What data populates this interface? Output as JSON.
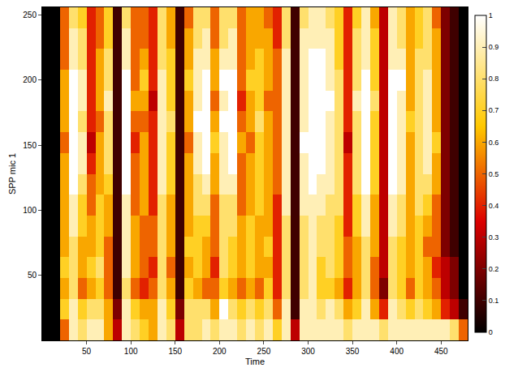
{
  "chart_data": {
    "type": "heatmap",
    "x_label": "Time",
    "y_label": "SPP mic 1",
    "color": "hot",
    "xlim": [
      0,
      480
    ],
    "ylim": [
      0,
      256
    ],
    "xticks": [
      50,
      100,
      150,
      200,
      250,
      300,
      350,
      400,
      450
    ],
    "yticks": [
      50,
      100,
      150,
      200,
      250
    ],
    "colorbar_range": [
      0,
      1
    ],
    "colorbar_ticks": [
      0,
      0.1,
      0.2,
      0.3,
      0.4,
      0.5,
      0.6,
      0.7,
      0.8,
      0.9,
      1
    ],
    "x": [
      5,
      15,
      25,
      35,
      45,
      55,
      65,
      75,
      85,
      95,
      105,
      115,
      125,
      135,
      145,
      155,
      165,
      175,
      185,
      195,
      205,
      215,
      225,
      235,
      245,
      255,
      265,
      275,
      285,
      295,
      305,
      315,
      325,
      335,
      345,
      355,
      365,
      375,
      385,
      395,
      405,
      415,
      425,
      435,
      445,
      455,
      465,
      475
    ],
    "y": [
      8,
      24,
      40,
      56,
      72,
      88,
      104,
      120,
      136,
      152,
      168,
      184,
      200,
      216,
      232,
      248
    ],
    "cells": [
      [
        0,
        0,
        0.5,
        0.9,
        0.8,
        0.9,
        0.9,
        0.6,
        0.3,
        0.9,
        0.8,
        0.7,
        0.6,
        0.9,
        0.8,
        0.3,
        0.8,
        0.8,
        0.9,
        0.8,
        0.9,
        0.9,
        0.8,
        0.9,
        0.8,
        0.9,
        0.7,
        0.9,
        0.3,
        0.9,
        0.9,
        0.9,
        0.9,
        0.9,
        0.8,
        0.9,
        0.9,
        0.9,
        0.8,
        0.9,
        0.9,
        0.9,
        0.9,
        0.9,
        0.9,
        0.9,
        0.8,
        0.5
      ],
      [
        0,
        0,
        0.7,
        0.9,
        0.7,
        0.8,
        0.8,
        0.6,
        0.2,
        0.9,
        0.7,
        0.6,
        0.6,
        0.9,
        0.7,
        0.2,
        0.8,
        0.8,
        0.8,
        0.6,
        1,
        0.8,
        0.7,
        0.8,
        0.7,
        0.8,
        0.5,
        0.9,
        0.1,
        0.9,
        0.9,
        0.8,
        0.9,
        0.8,
        0.6,
        0.7,
        0.9,
        0.6,
        0.4,
        0.9,
        0.8,
        0.7,
        0.8,
        0.7,
        0.6,
        0.4,
        0.3,
        0.1
      ],
      [
        0,
        0,
        0.6,
        0.8,
        0.5,
        0.6,
        0.7,
        0.5,
        0.1,
        0.8,
        0.5,
        0.4,
        0.5,
        0.8,
        0.6,
        0.1,
        0.7,
        0.6,
        0.5,
        0.5,
        0.7,
        0.6,
        0.5,
        0.6,
        0.5,
        0.7,
        0.4,
        0.8,
        0.1,
        0.8,
        0.9,
        0.7,
        0.7,
        0.6,
        0.4,
        0.6,
        0.8,
        0.5,
        0.2,
        0.8,
        0.7,
        0.5,
        0.7,
        0.6,
        0.5,
        0.3,
        0.2,
        0
      ],
      [
        0,
        0,
        0.7,
        0.8,
        0.6,
        0.7,
        0.8,
        0.5,
        0.1,
        0.9,
        0.6,
        0.5,
        0.4,
        0.8,
        0.5,
        0.1,
        0.6,
        0.7,
        0.6,
        0.4,
        0.8,
        0.7,
        0.6,
        0.7,
        0.6,
        0.6,
        0.4,
        0.8,
        0.1,
        0.8,
        0.9,
        0.7,
        0.8,
        0.7,
        0.5,
        0.6,
        0.8,
        0.5,
        0.3,
        0.8,
        0.7,
        0.6,
        0.7,
        0.6,
        0.4,
        0.3,
        0.2,
        0
      ],
      [
        0,
        0,
        0.6,
        0.8,
        0.6,
        0.6,
        0.7,
        0.5,
        0.1,
        0.9,
        0.6,
        0.5,
        0.5,
        0.8,
        0.6,
        0.1,
        0.7,
        0.7,
        0.6,
        0.5,
        0.8,
        0.7,
        0.6,
        0.7,
        0.6,
        0.7,
        0.4,
        0.8,
        0.1,
        0.8,
        0.9,
        0.8,
        0.8,
        0.7,
        0.5,
        0.6,
        0.8,
        0.6,
        0.3,
        0.8,
        0.7,
        0.6,
        0.7,
        0.5,
        0.5,
        0.2,
        0.1,
        0
      ],
      [
        0,
        0,
        0.6,
        0.9,
        0.7,
        0.6,
        0.7,
        0.6,
        0.1,
        0.9,
        0.6,
        0.5,
        0.5,
        0.8,
        0.6,
        0.1,
        0.6,
        0.7,
        0.7,
        0.5,
        0.8,
        0.8,
        0.6,
        0.7,
        0.6,
        0.6,
        0.4,
        0.8,
        0.1,
        0.8,
        0.9,
        0.8,
        0.8,
        0.7,
        0.4,
        0.7,
        0.9,
        0.6,
        0.3,
        0.9,
        0.8,
        0.6,
        0.7,
        0.6,
        0.5,
        0.2,
        0.1,
        0
      ],
      [
        0,
        0,
        0.6,
        0.9,
        0.7,
        0.5,
        0.7,
        0.6,
        0.1,
        0.9,
        0.5,
        0.6,
        0.4,
        0.8,
        0.6,
        0.1,
        0.6,
        0.8,
        0.8,
        0.5,
        0.8,
        0.8,
        0.5,
        0.6,
        0.7,
        0.6,
        0.4,
        0.9,
        0.1,
        0.9,
        0.9,
        0.9,
        0.8,
        0.8,
        0.4,
        0.7,
        0.9,
        0.6,
        0.3,
        0.9,
        0.8,
        0.6,
        0.8,
        0.7,
        0.5,
        0.2,
        0.1,
        0
      ],
      [
        0,
        0,
        0.6,
        1,
        0.8,
        0.5,
        0.6,
        0.7,
        0.1,
        1,
        0.5,
        0.6,
        0.4,
        0.9,
        0.7,
        0.1,
        0.6,
        0.8,
        0.9,
        0.6,
        0.9,
        0.9,
        0.5,
        0.6,
        0.7,
        0.6,
        0.5,
        0.9,
        0.1,
        0.9,
        1,
        0.9,
        0.9,
        0.8,
        0.4,
        0.8,
        1,
        0.7,
        0.3,
        1,
        0.9,
        0.6,
        0.8,
        0.8,
        0.6,
        0.2,
        0.1,
        0
      ],
      [
        0,
        0,
        0.6,
        1,
        0.9,
        0.4,
        0.6,
        0.8,
        0.1,
        1,
        0.5,
        0.6,
        0.4,
        0.9,
        0.7,
        0.1,
        0.6,
        0.9,
        1,
        0.6,
        0.9,
        1,
        0.5,
        0.6,
        0.7,
        0.6,
        0.5,
        0.9,
        0.1,
        0.9,
        1,
        1,
        0.9,
        0.8,
        0.4,
        0.8,
        1,
        0.7,
        0.3,
        1,
        0.9,
        0.6,
        0.8,
        0.9,
        0.6,
        0.2,
        0.1,
        0
      ],
      [
        0,
        0,
        0.5,
        1,
        0.9,
        0.3,
        0.6,
        0.8,
        0.1,
        1,
        0.4,
        0.6,
        0.4,
        0.9,
        0.7,
        0.1,
        0.5,
        0.9,
        1,
        0.7,
        0.9,
        1,
        0.6,
        0.5,
        0.7,
        0.6,
        0.5,
        0.9,
        0.1,
        1,
        1,
        1,
        0.9,
        0.8,
        0.3,
        0.8,
        1,
        0.7,
        0.3,
        1,
        0.9,
        0.6,
        0.8,
        0.9,
        0.7,
        0.2,
        0.1,
        0
      ],
      [
        0,
        0,
        0.6,
        1,
        0.8,
        0.4,
        0.5,
        0.8,
        0.1,
        1,
        0.5,
        0.5,
        0.4,
        0.9,
        0.8,
        0.1,
        0.6,
        1,
        1,
        0.6,
        1,
        1,
        0.5,
        0.6,
        0.8,
        0.6,
        0.5,
        0.9,
        0.1,
        0.9,
        1,
        1,
        0.9,
        0.8,
        0.4,
        0.8,
        1,
        0.7,
        0.3,
        1,
        0.9,
        0.7,
        0.8,
        0.9,
        0.6,
        0.2,
        0.1,
        0
      ],
      [
        0,
        0,
        0.6,
        1,
        0.9,
        0.4,
        0.6,
        0.9,
        0.1,
        1,
        0.6,
        0.6,
        0.3,
        0.9,
        0.7,
        0.1,
        0.6,
        0.9,
        1,
        0.5,
        0.9,
        1,
        0.4,
        0.6,
        0.7,
        0.5,
        0.5,
        0.9,
        0.1,
        0.9,
        1,
        1,
        1,
        0.8,
        0.4,
        0.9,
        1,
        0.8,
        0.3,
        1,
        0.9,
        0.6,
        0.8,
        0.9,
        0.6,
        0.2,
        0.1,
        0
      ],
      [
        0,
        0,
        0.6,
        1,
        0.9,
        0.4,
        0.6,
        0.8,
        0.1,
        1,
        0.5,
        0.7,
        0.4,
        0.9,
        0.7,
        0.1,
        0.7,
        0.9,
        1,
        0.6,
        1,
        1,
        0.5,
        0.7,
        0.7,
        0.6,
        0.5,
        0.9,
        0.1,
        0.9,
        1,
        1,
        0.9,
        0.8,
        0.4,
        0.8,
        1,
        0.7,
        0.3,
        1,
        1,
        0.6,
        0.8,
        0.9,
        0.6,
        0.2,
        0.1,
        0
      ],
      [
        0,
        0,
        0.5,
        0.9,
        0.8,
        0.4,
        0.6,
        0.8,
        0.1,
        0.9,
        0.5,
        0.6,
        0.4,
        0.8,
        0.7,
        0.1,
        0.6,
        0.9,
        0.9,
        0.6,
        0.9,
        0.9,
        0.5,
        0.6,
        0.7,
        0.6,
        0.5,
        0.9,
        0.1,
        0.9,
        1,
        1,
        0.9,
        0.7,
        0.4,
        0.8,
        0.9,
        0.7,
        0.3,
        0.9,
        0.9,
        0.6,
        0.8,
        0.8,
        0.6,
        0.2,
        0.1,
        0
      ],
      [
        0,
        0,
        0.5,
        0.9,
        0.8,
        0.4,
        0.5,
        0.7,
        0.1,
        0.9,
        0.5,
        0.5,
        0.4,
        0.8,
        0.6,
        0.1,
        0.6,
        0.8,
        0.9,
        0.5,
        0.8,
        0.9,
        0.5,
        0.6,
        0.6,
        0.6,
        0.4,
        0.8,
        0.1,
        0.9,
        0.9,
        0.9,
        0.9,
        0.7,
        0.4,
        0.8,
        0.9,
        0.7,
        0.3,
        0.9,
        0.8,
        0.6,
        0.7,
        0.8,
        0.6,
        0.2,
        0.1,
        0
      ],
      [
        0,
        0,
        0.5,
        0.8,
        0.7,
        0.4,
        0.5,
        0.7,
        0.1,
        0.8,
        0.5,
        0.5,
        0.4,
        0.8,
        0.6,
        0.1,
        0.5,
        0.8,
        0.8,
        0.5,
        0.8,
        0.8,
        0.5,
        0.6,
        0.6,
        0.5,
        0.4,
        0.8,
        0.1,
        0.8,
        0.9,
        0.9,
        0.8,
        0.7,
        0.4,
        0.7,
        0.9,
        0.6,
        0.3,
        0.9,
        0.8,
        0.6,
        0.7,
        0.8,
        0.5,
        0.2,
        0.1,
        0
      ]
    ]
  }
}
